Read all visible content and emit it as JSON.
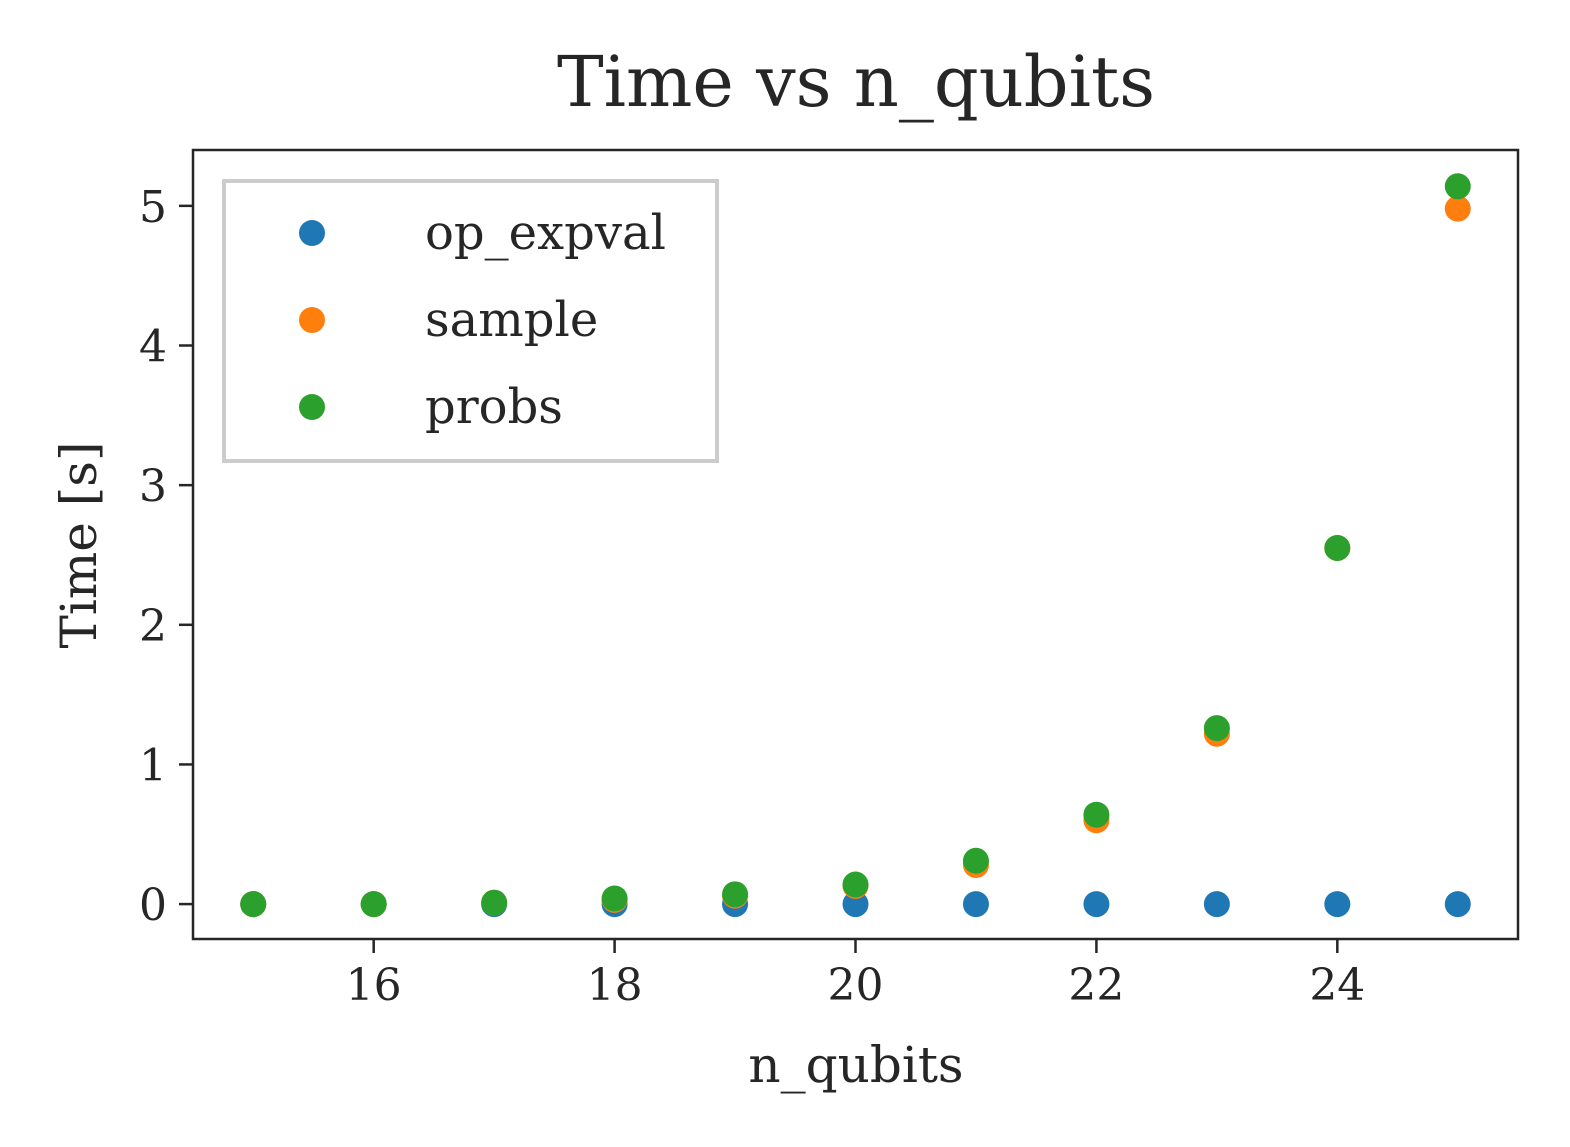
{
  "chart_data": {
    "type": "scatter",
    "title": "Time vs n_qubits",
    "xlabel": "n_qubits",
    "ylabel": "Time [s]",
    "xlim": [
      14.5,
      25.5
    ],
    "ylim": [
      -0.25,
      5.4
    ],
    "xticks": [
      16,
      18,
      20,
      22,
      24
    ],
    "yticks": [
      0,
      1,
      2,
      3,
      4,
      5
    ],
    "grid": false,
    "legend_position": "top-left",
    "x": [
      15,
      16,
      17,
      18,
      19,
      20,
      21,
      22,
      23,
      24,
      25
    ],
    "series": [
      {
        "name": "op_expval",
        "color": "#1f77b4",
        "values": [
          0.0,
          0.0,
          0.0,
          0.0,
          0.0,
          0.0,
          0.0,
          0.0,
          0.0,
          0.0,
          0.0
        ]
      },
      {
        "name": "sample",
        "color": "#ff7f0e",
        "values": [
          0.0,
          0.0,
          0.01,
          0.03,
          0.06,
          0.13,
          0.28,
          0.6,
          1.22,
          2.55,
          4.98
        ]
      },
      {
        "name": "probs",
        "color": "#2ca02c",
        "values": [
          0.0,
          0.0,
          0.01,
          0.04,
          0.07,
          0.14,
          0.31,
          0.64,
          1.26,
          2.55,
          5.14
        ]
      }
    ]
  }
}
